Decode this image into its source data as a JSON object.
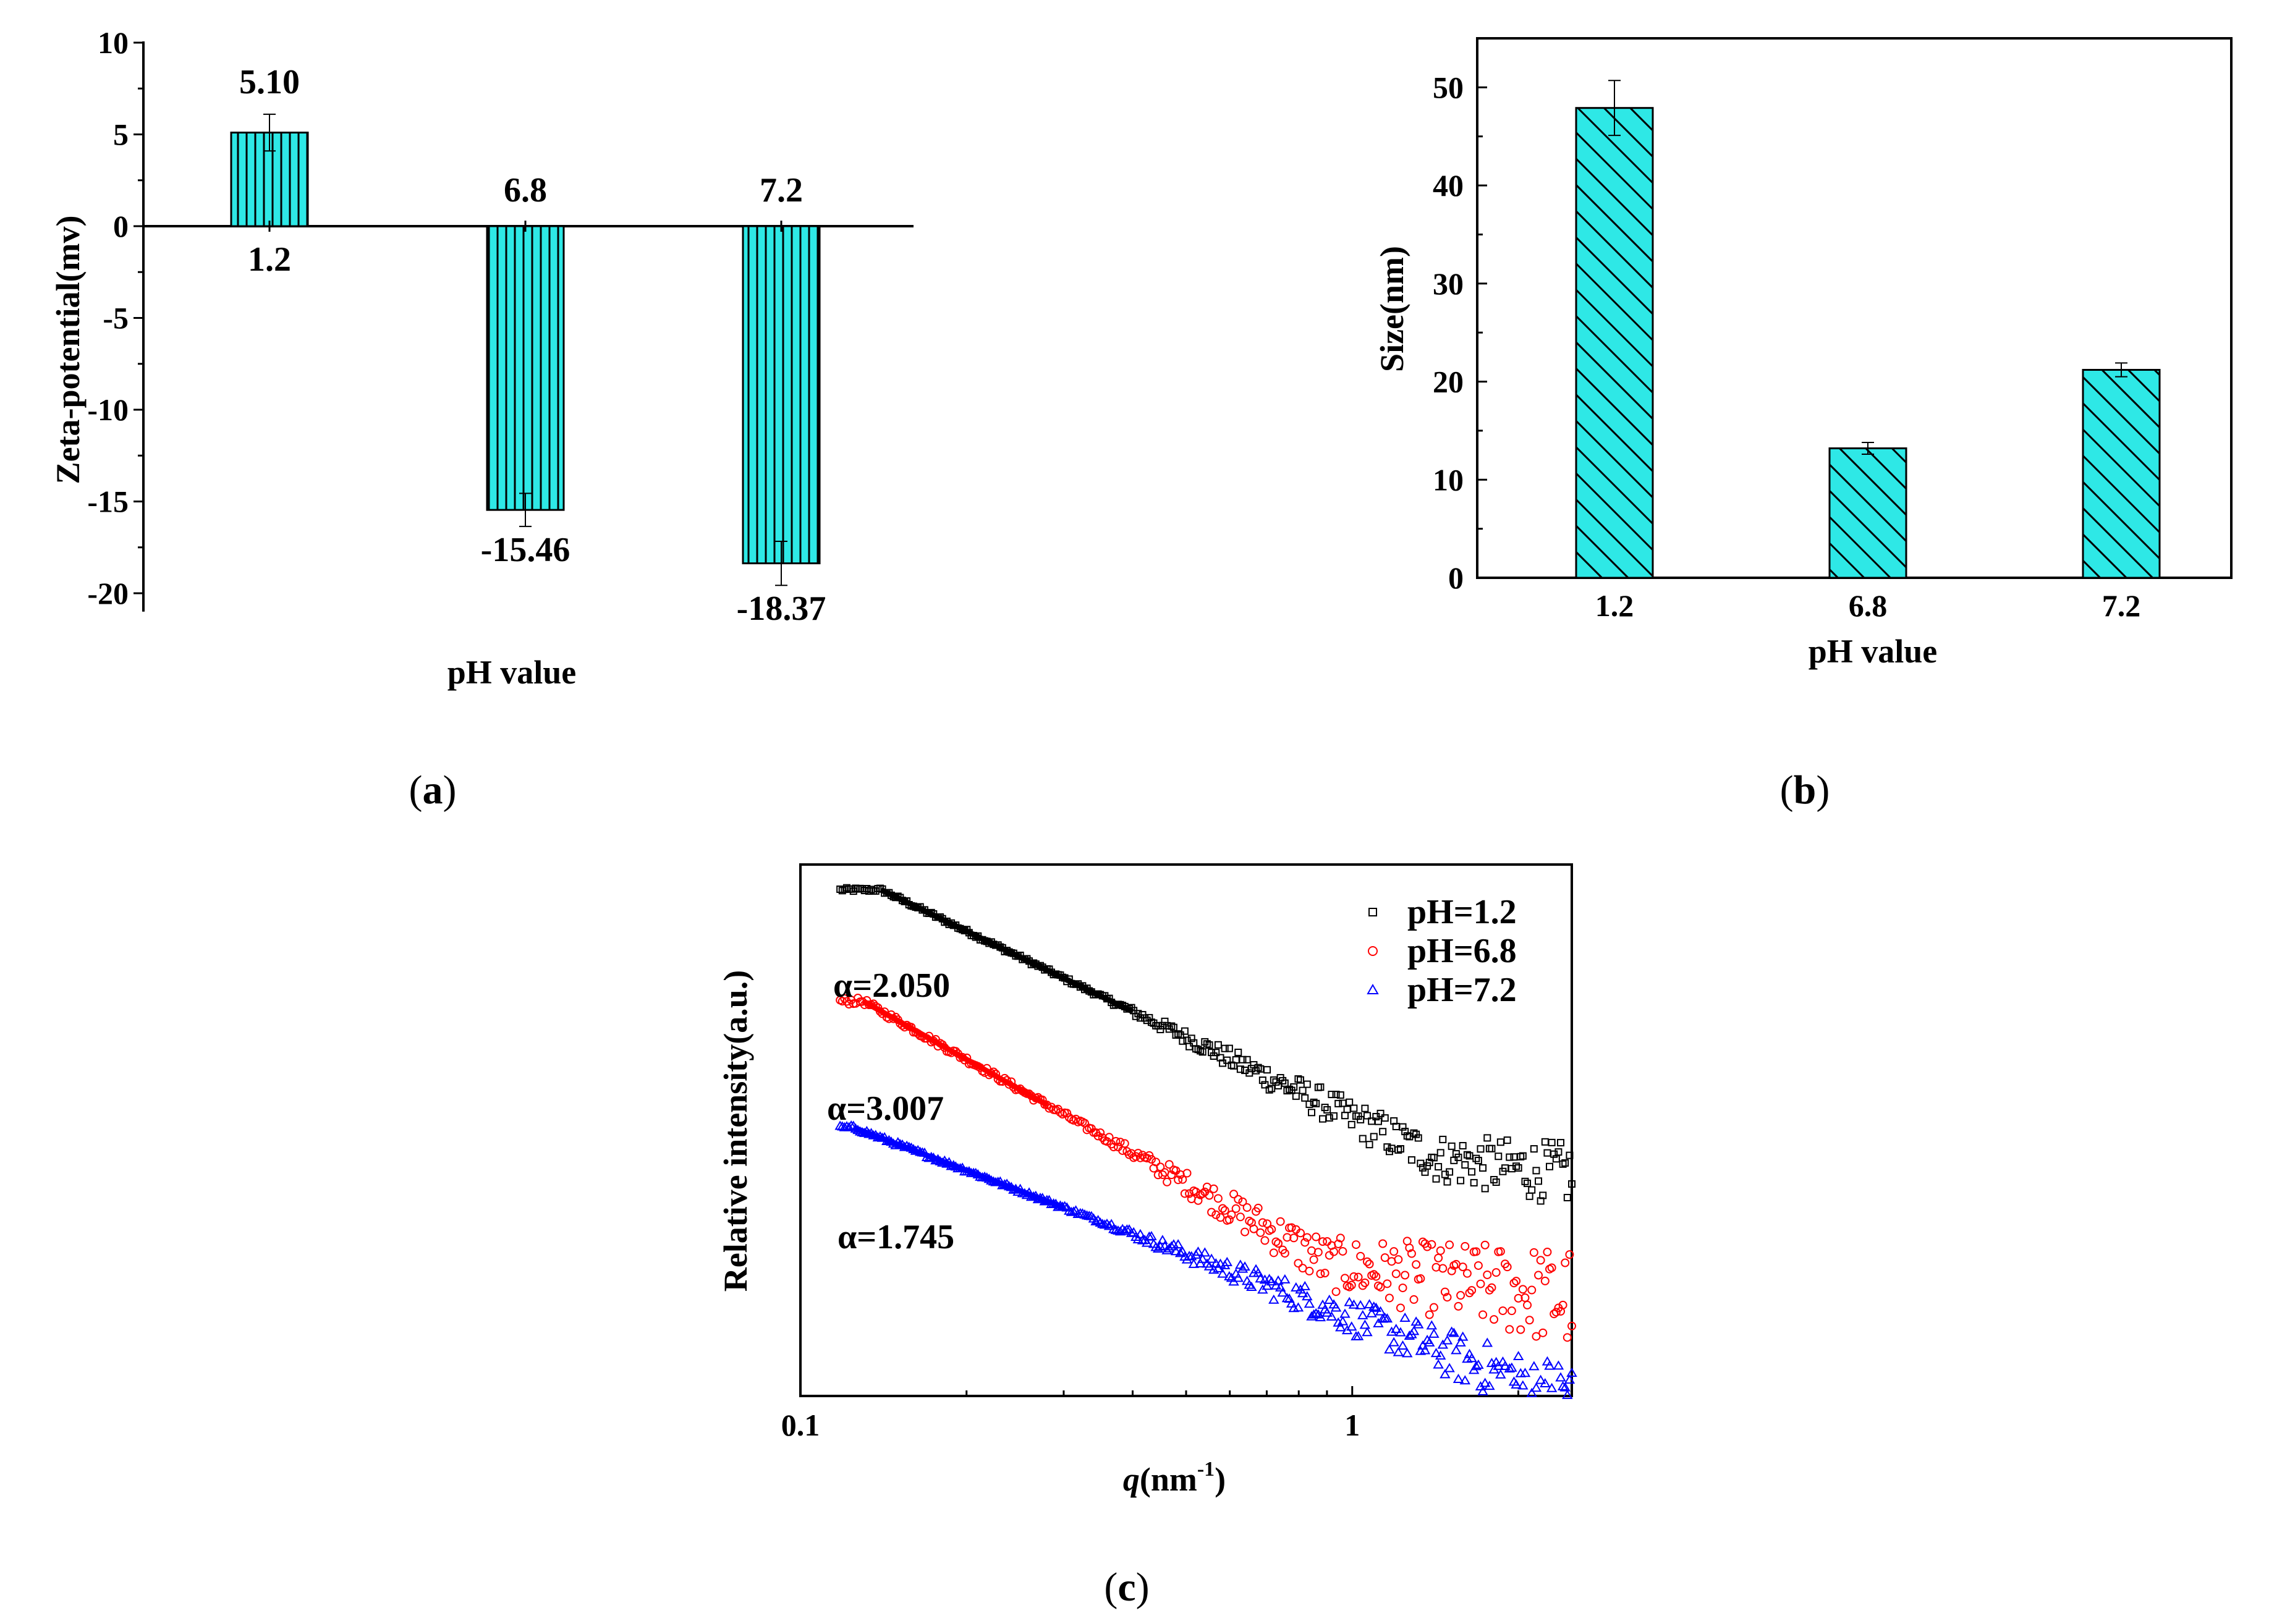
{
  "chart_data": [
    {
      "id": "a",
      "panel_label": "a",
      "type": "bar",
      "xlabel": "pH value",
      "ylabel": "Zeta-potential(mv)",
      "ylim": [
        -21,
        10
      ],
      "yticks": [
        10,
        5,
        0,
        -5,
        -10,
        -15,
        -20
      ],
      "categories": [
        "1.2",
        "6.8",
        "7.2"
      ],
      "values": [
        5.1,
        -15.46,
        -18.37
      ],
      "errors": [
        1.0,
        0.9,
        1.2
      ],
      "value_labels": [
        "5.10",
        "-15.46",
        "-18.37"
      ],
      "bar_color": "#2ee8e6",
      "pattern": "vertical-lines"
    },
    {
      "id": "b",
      "panel_label": "b",
      "type": "bar",
      "xlabel": "pH value",
      "ylabel": "Size(nm)",
      "ylim": [
        0,
        55
      ],
      "yticks": [
        0,
        10,
        20,
        30,
        40,
        50
      ],
      "categories": [
        "1.2",
        "6.8",
        "7.2"
      ],
      "values": [
        47.9,
        13.2,
        21.2
      ],
      "errors": [
        2.8,
        0.6,
        0.7
      ],
      "bar_color": "#2ee8e6",
      "pattern": "diagonal-hatch"
    },
    {
      "id": "c",
      "panel_label": "c",
      "type": "scatter",
      "xscale": "log",
      "xlim": [
        0.1,
        2.5
      ],
      "xticks": [
        "0.1",
        "1"
      ],
      "xlabel_main": "q",
      "xlabel_unit": "(nm",
      "xlabel_sup": "-1",
      "xlabel_close": ")",
      "ylabel": "Relative intensity(a.u.)",
      "yscale": "log (arbitrary, no tick labels)",
      "series": [
        {
          "name": "pH=1.2",
          "marker": "square",
          "color": "#000000",
          "fit_alpha": "α=2.050",
          "fit_range": [
            0.14,
            0.4
          ],
          "start_level": 1.0,
          "slope": 2.05
        },
        {
          "name": "pH=6.8",
          "marker": "circle",
          "color": "#ff0000",
          "fit_alpha": "α=3.007",
          "fit_range": [
            0.13,
            0.28
          ],
          "start_level": 0.78,
          "slope": 3.007
        },
        {
          "name": "pH=7.2",
          "marker": "triangle",
          "color": "#0000ff",
          "fit_alpha": "α=1.745",
          "fit_range": [
            0.125,
            0.3
          ],
          "start_level": 0.53,
          "slope": 1.745
        }
      ]
    }
  ]
}
